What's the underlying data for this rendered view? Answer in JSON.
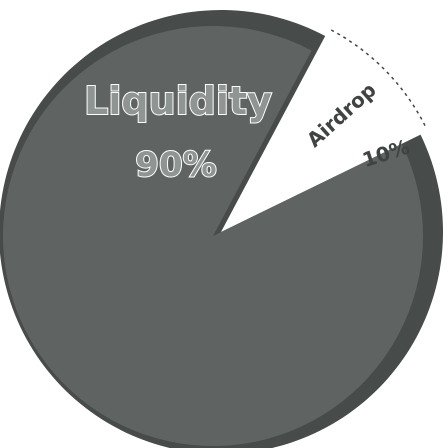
{
  "chart_data": {
    "type": "pie",
    "slices": [
      {
        "label": "Liquidity",
        "value": 90,
        "value_label": "90%"
      },
      {
        "label": "Airdrop",
        "value": 10,
        "value_label": "10%"
      }
    ],
    "colors": {
      "liquidity_fill": "#5f6462",
      "liquidity_edge": "#474b49",
      "airdrop_fill": "#ffffff",
      "airdrop_text": "#3f4341",
      "liquidity_text": "#8f9593",
      "liquidity_text_outline": "#ffffff"
    },
    "title": "",
    "legend": "none"
  }
}
